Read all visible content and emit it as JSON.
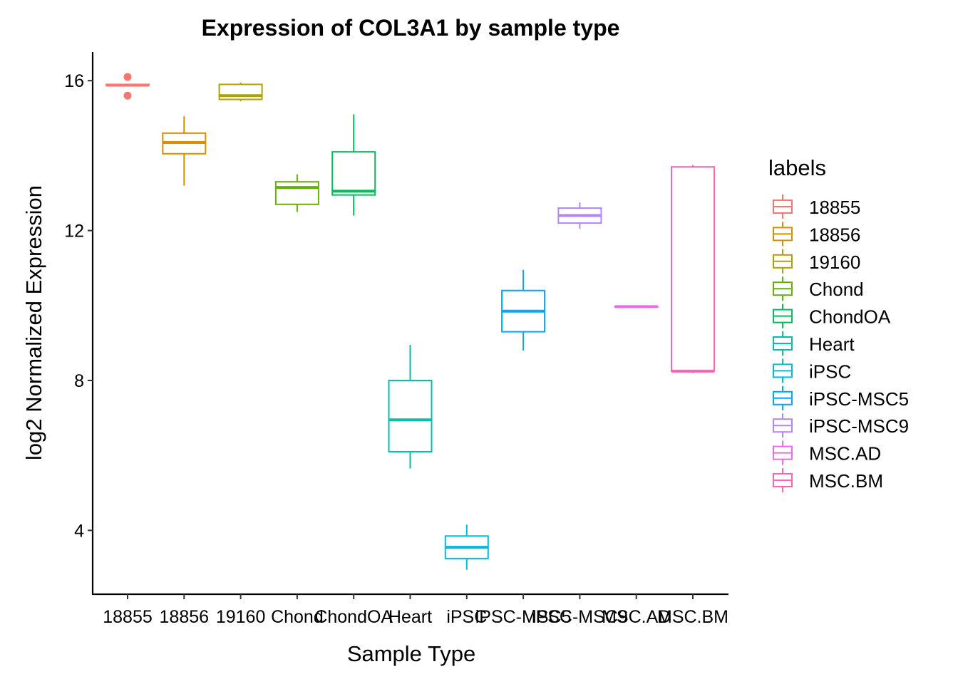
{
  "chart_data": {
    "type": "box",
    "title": "Expression of COL3A1 by sample type",
    "xlabel": "Sample Type",
    "ylabel": "log2 Normalized Expression",
    "ylim": [
      2.4,
      16.8
    ],
    "yticks": [
      4,
      8,
      12,
      16
    ],
    "legend_title": "labels",
    "legend_position": "right",
    "categories": [
      "18855",
      "18856",
      "19160",
      "Chond",
      "ChondOA",
      "Heart",
      "iPSC",
      "iPSC-MSC5",
      "iPSC-MSC9",
      "MSC.AD",
      "MSC.BM"
    ],
    "series": [
      {
        "name": "18855",
        "color": "#F8766D",
        "min": 15.88,
        "q1": 15.88,
        "median": 15.88,
        "q3": 15.9,
        "max": 15.9,
        "outliers": [
          16.1,
          15.6
        ]
      },
      {
        "name": "18856",
        "color": "#DB8E00",
        "min": 13.2,
        "q1": 14.05,
        "median": 14.35,
        "q3": 14.6,
        "max": 15.05,
        "outliers": []
      },
      {
        "name": "19160",
        "color": "#AEA200",
        "min": 15.45,
        "q1": 15.5,
        "median": 15.6,
        "q3": 15.9,
        "max": 15.95,
        "outliers": []
      },
      {
        "name": "Chond",
        "color": "#64B200",
        "min": 12.5,
        "q1": 12.7,
        "median": 13.15,
        "q3": 13.3,
        "max": 13.5,
        "outliers": []
      },
      {
        "name": "ChondOA",
        "color": "#00BD5C",
        "min": 12.4,
        "q1": 12.95,
        "median": 13.05,
        "q3": 14.1,
        "max": 15.1,
        "outliers": []
      },
      {
        "name": "Heart",
        "color": "#00C1A7",
        "min": 5.65,
        "q1": 6.1,
        "median": 6.95,
        "q3": 8.0,
        "max": 8.95,
        "outliers": []
      },
      {
        "name": "iPSC",
        "color": "#00BADE",
        "min": 2.95,
        "q1": 3.25,
        "median": 3.55,
        "q3": 3.85,
        "max": 4.15,
        "outliers": []
      },
      {
        "name": "iPSC-MSC5",
        "color": "#00A6FF",
        "min": 8.8,
        "q1": 9.3,
        "median": 9.85,
        "q3": 10.4,
        "max": 10.95,
        "outliers": []
      },
      {
        "name": "iPSC-MSC9",
        "color": "#B385FF",
        "min": 12.05,
        "q1": 12.2,
        "median": 12.4,
        "q3": 12.6,
        "max": 12.75,
        "outliers": []
      },
      {
        "name": "MSC.AD",
        "color": "#EF67EB",
        "min": 9.97,
        "q1": 9.97,
        "median": 9.97,
        "q3": 9.97,
        "max": 9.97,
        "outliers": []
      },
      {
        "name": "MSC.BM",
        "color": "#FF63B6",
        "min": 8.2,
        "q1": 8.25,
        "median": 8.25,
        "q3": 13.7,
        "max": 13.75,
        "outliers": []
      }
    ]
  }
}
